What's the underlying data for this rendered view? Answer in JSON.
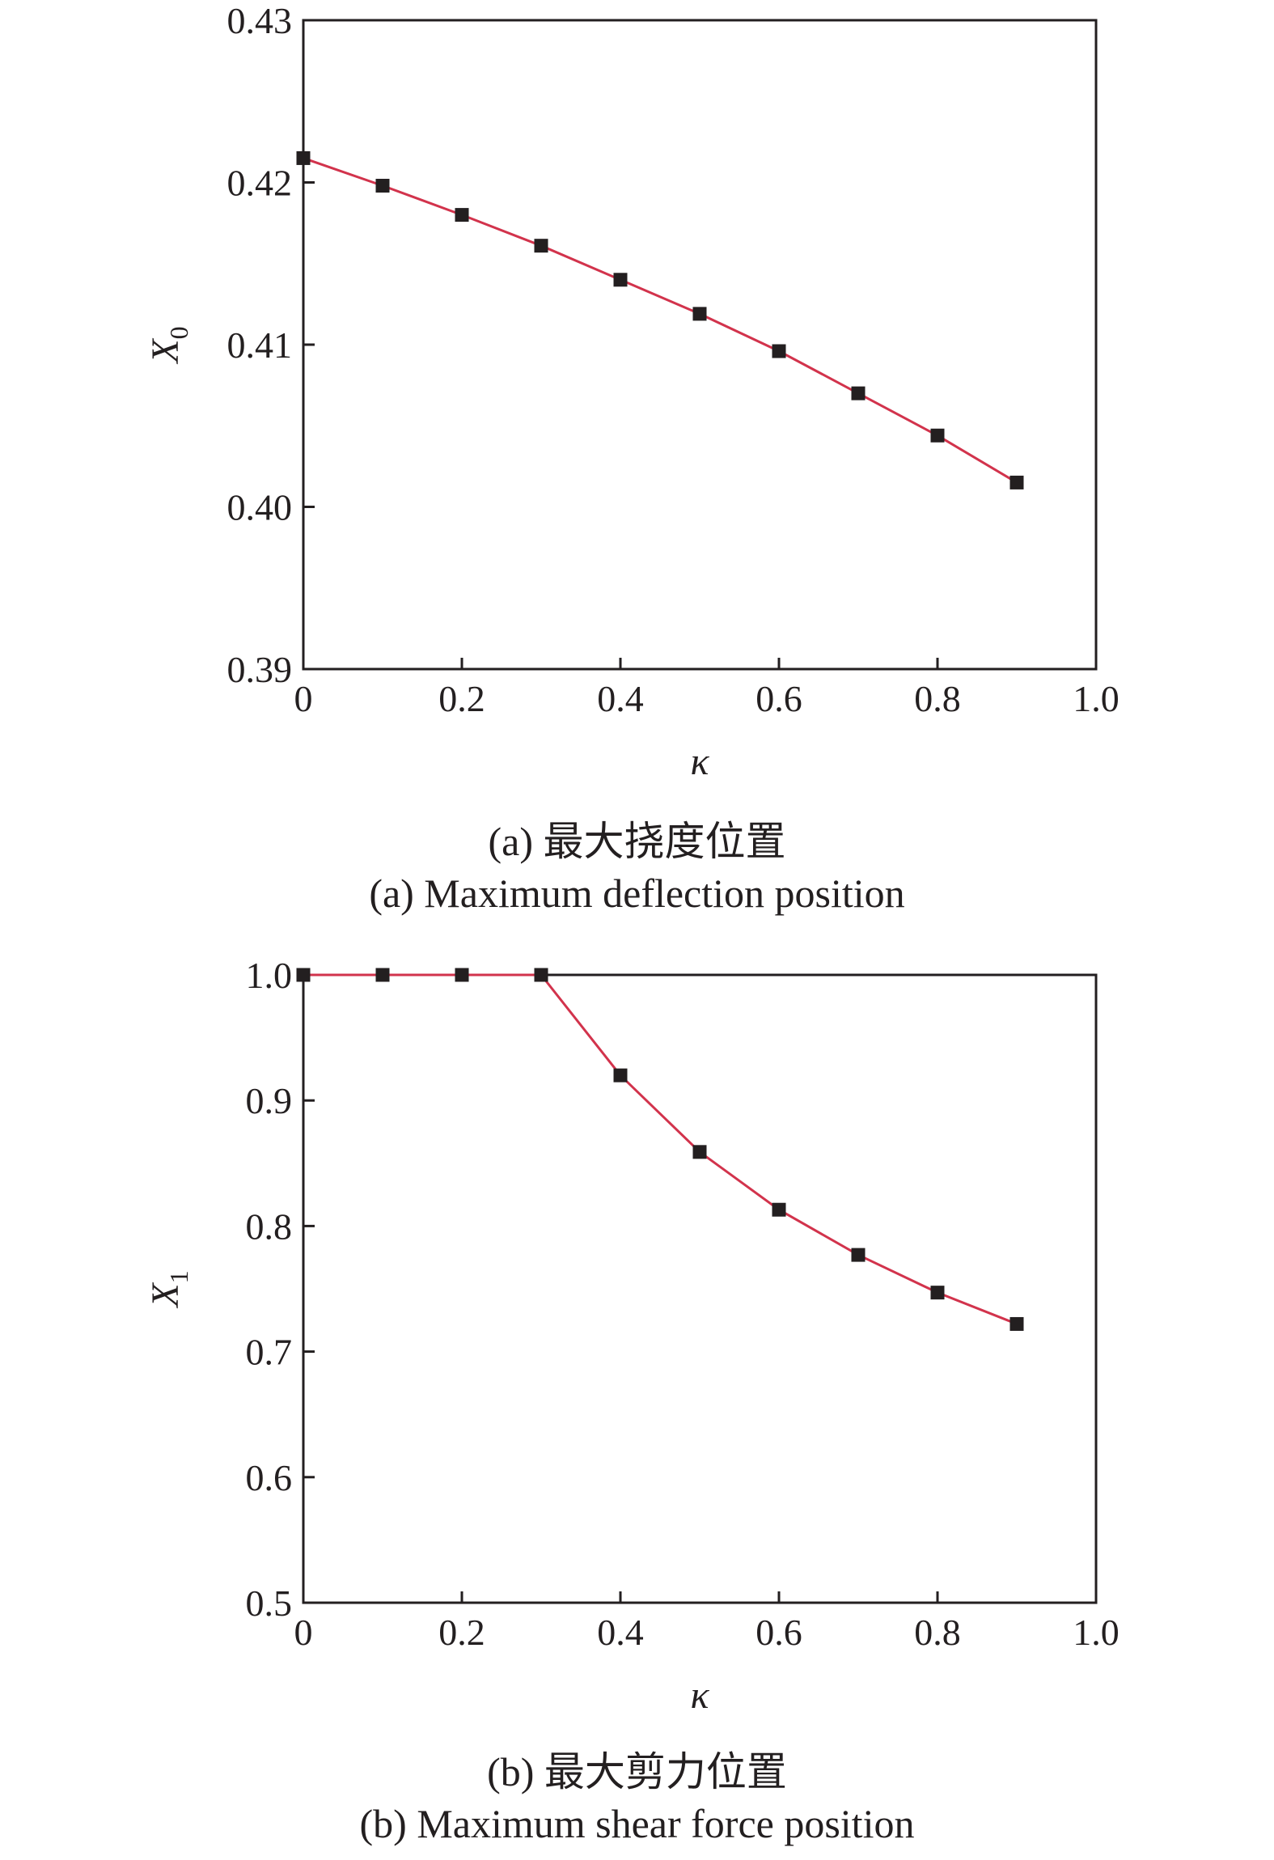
{
  "colors": {
    "line": "#d2334c",
    "marker": "#231f20",
    "axis": "#231f20"
  },
  "chart_data": [
    {
      "type": "line",
      "xlabel": "κ",
      "ylabel_main": "X",
      "ylabel_sub": "0",
      "xlim": [
        0,
        1.0
      ],
      "ylim": [
        0.39,
        0.43
      ],
      "xticks": [
        0,
        0.2,
        0.4,
        0.6,
        0.8,
        1.0
      ],
      "xtick_labels": [
        "0",
        "0.2",
        "0.4",
        "0.6",
        "0.8",
        "1.0"
      ],
      "yticks": [
        0.39,
        0.4,
        0.41,
        0.42,
        0.43
      ],
      "ytick_labels": [
        "0.39",
        "0.40",
        "0.41",
        "0.42",
        "0.43"
      ],
      "x": [
        0,
        0.1,
        0.2,
        0.3,
        0.4,
        0.5,
        0.6,
        0.7,
        0.8,
        0.9
      ],
      "y": [
        0.4215,
        0.4198,
        0.418,
        0.4161,
        0.414,
        0.4119,
        0.4096,
        0.407,
        0.4044,
        0.4015
      ],
      "caption_cn": "(a) 最大挠度位置",
      "caption_en": "(a) Maximum deflection position"
    },
    {
      "type": "line",
      "xlabel": "κ",
      "ylabel_main": "X",
      "ylabel_sub": "1",
      "xlim": [
        0,
        1.0
      ],
      "ylim": [
        0.5,
        1.0
      ],
      "xticks": [
        0,
        0.2,
        0.4,
        0.6,
        0.8,
        1.0
      ],
      "xtick_labels": [
        "0",
        "0.2",
        "0.4",
        "0.6",
        "0.8",
        "1.0"
      ],
      "yticks": [
        0.5,
        0.6,
        0.7,
        0.8,
        0.9,
        1.0
      ],
      "ytick_labels": [
        "0.5",
        "0.6",
        "0.7",
        "0.8",
        "0.9",
        "1.0"
      ],
      "x": [
        0,
        0.1,
        0.2,
        0.3,
        0.4,
        0.5,
        0.6,
        0.7,
        0.8,
        0.9
      ],
      "y": [
        1.0,
        1.0,
        1.0,
        1.0,
        0.92,
        0.859,
        0.813,
        0.777,
        0.747,
        0.722
      ],
      "caption_cn": "(b) 最大剪力位置",
      "caption_en": "(b) Maximum shear force position"
    }
  ]
}
